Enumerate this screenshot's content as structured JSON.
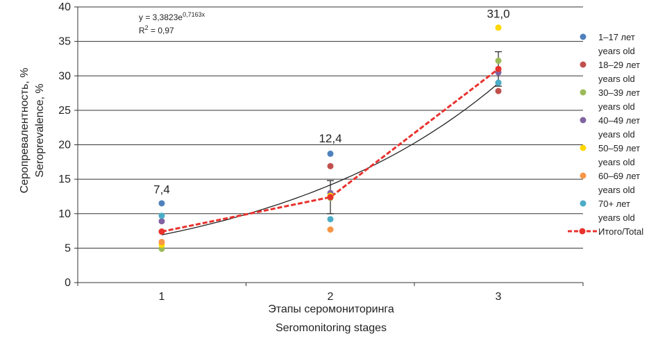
{
  "chart_data": {
    "type": "scatter",
    "ylabel_lines": [
      "Серопревалентность, %",
      "Seroprevalence, %"
    ],
    "xlabel_lines": [
      "Этапы серомониторинга",
      "Seromonitoring stages"
    ],
    "x_categories": [
      "1",
      "2",
      "3"
    ],
    "ylim": [
      0,
      40
    ],
    "y_ticks": [
      0,
      5,
      10,
      15,
      20,
      25,
      30,
      35,
      40
    ],
    "grid": true,
    "legend_position": "right",
    "series": [
      {
        "name_lines": [
          "1–17 лет",
          "years old"
        ],
        "color": "#4f81bd",
        "values": [
          11.5,
          18.7,
          29.0
        ]
      },
      {
        "name_lines": [
          "18–29 лет",
          "years old"
        ],
        "color": "#c0504d",
        "values": [
          7.4,
          16.9,
          27.8
        ]
      },
      {
        "name_lines": [
          "30–39 лет",
          "years old"
        ],
        "color": "#9bbb59",
        "values": [
          4.9,
          12.3,
          32.2
        ]
      },
      {
        "name_lines": [
          "40–49 лет",
          "years old"
        ],
        "color": "#8064a2",
        "values": [
          8.9,
          13.0,
          30.5
        ]
      },
      {
        "name_lines": [
          "50–59 лет",
          "years old"
        ],
        "color": "#ffd700",
        "values": [
          5.5,
          12.6,
          37.0
        ]
      },
      {
        "name_lines": [
          "60–69 лет",
          "years old"
        ],
        "color": "#f79646",
        "values": [
          5.9,
          7.7,
          31.0
        ]
      },
      {
        "name_lines": [
          "70+ лет",
          "years old"
        ],
        "color": "#4bacc6",
        "values": [
          9.7,
          9.2,
          29.0
        ]
      }
    ],
    "total": {
      "name": "Итого/Total",
      "color": "#e8322d",
      "values": [
        7.4,
        12.4,
        31.0
      ],
      "labels": [
        "7,4",
        "12,4",
        "31,0"
      ],
      "error_low": [
        null,
        10.0,
        28.5
      ],
      "error_high": [
        null,
        14.8,
        33.5
      ]
    },
    "trendline": {
      "a": 3.3823,
      "b": 0.7163,
      "equation": "y = 3,3823e",
      "exponent": "0,7163x",
      "r2_label": "R",
      "r2_sup": "2",
      "r2_value": " = 0,97"
    }
  }
}
